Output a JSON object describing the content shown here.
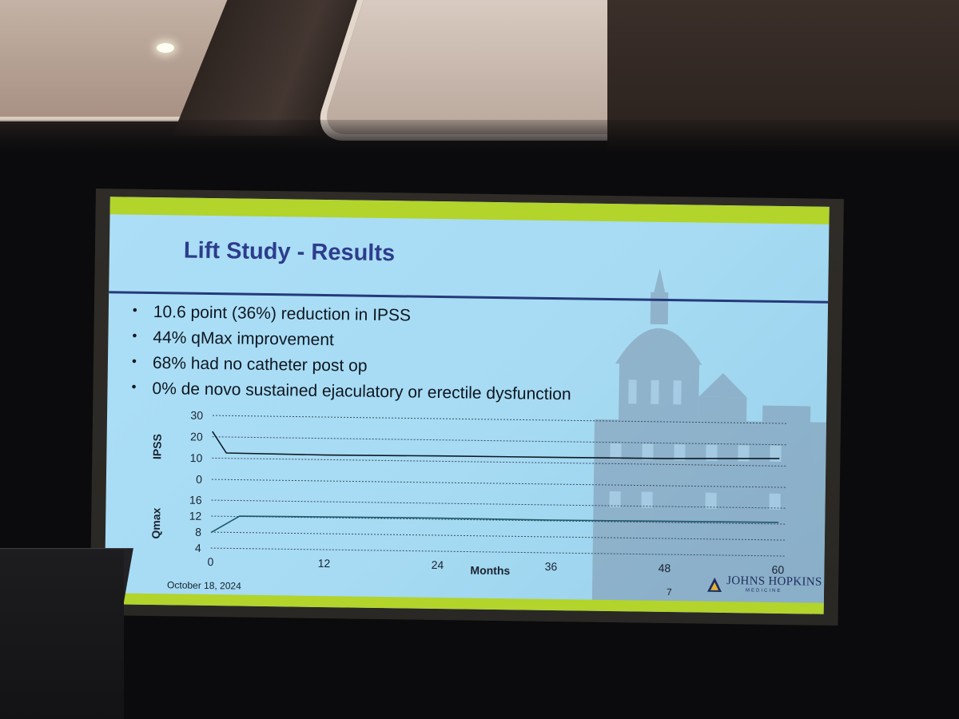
{
  "slide": {
    "title": "Lift Study - Results",
    "bullets": [
      "10.6 point (36%) reduction in IPSS",
      "44% qMax improvement",
      "68% had no catheter post op",
      "0% de novo sustained ejaculatory or erectile dysfunction"
    ],
    "date": "October 18, 2024",
    "page_number": "7",
    "logo": {
      "name": "JOHNS HOPKINS",
      "sub": "MEDICINE"
    }
  },
  "colors": {
    "slide_background": "#a9ddf5",
    "accent_bar": "#b2d42b",
    "title": "#2d3c8c",
    "rule": "#243a7a"
  },
  "chart_data": {
    "type": "line",
    "xlabel": "Months",
    "x_ticks": [
      0,
      12,
      24,
      36,
      48,
      60
    ],
    "panels": [
      {
        "ylabel": "IPSS",
        "y_ticks": [
          0,
          10,
          20,
          30
        ],
        "ylim": [
          0,
          30
        ],
        "grid": true,
        "points": [
          [
            0,
            22.5
          ],
          [
            1.5,
            12.5
          ],
          [
            12,
            12.2
          ],
          [
            24,
            12.5
          ],
          [
            36,
            12.6
          ],
          [
            48,
            12.8
          ],
          [
            60,
            13.5
          ]
        ]
      },
      {
        "ylabel": "Qmax",
        "y_ticks": [
          4,
          8,
          12,
          16
        ],
        "ylim": [
          4,
          18
        ],
        "grid": true,
        "points": [
          [
            0,
            7.9
          ],
          [
            3,
            12.1
          ],
          [
            12,
            12.2
          ],
          [
            24,
            12.3
          ],
          [
            36,
            12.2
          ],
          [
            48,
            12.3
          ],
          [
            60,
            12.4
          ]
        ]
      }
    ]
  }
}
